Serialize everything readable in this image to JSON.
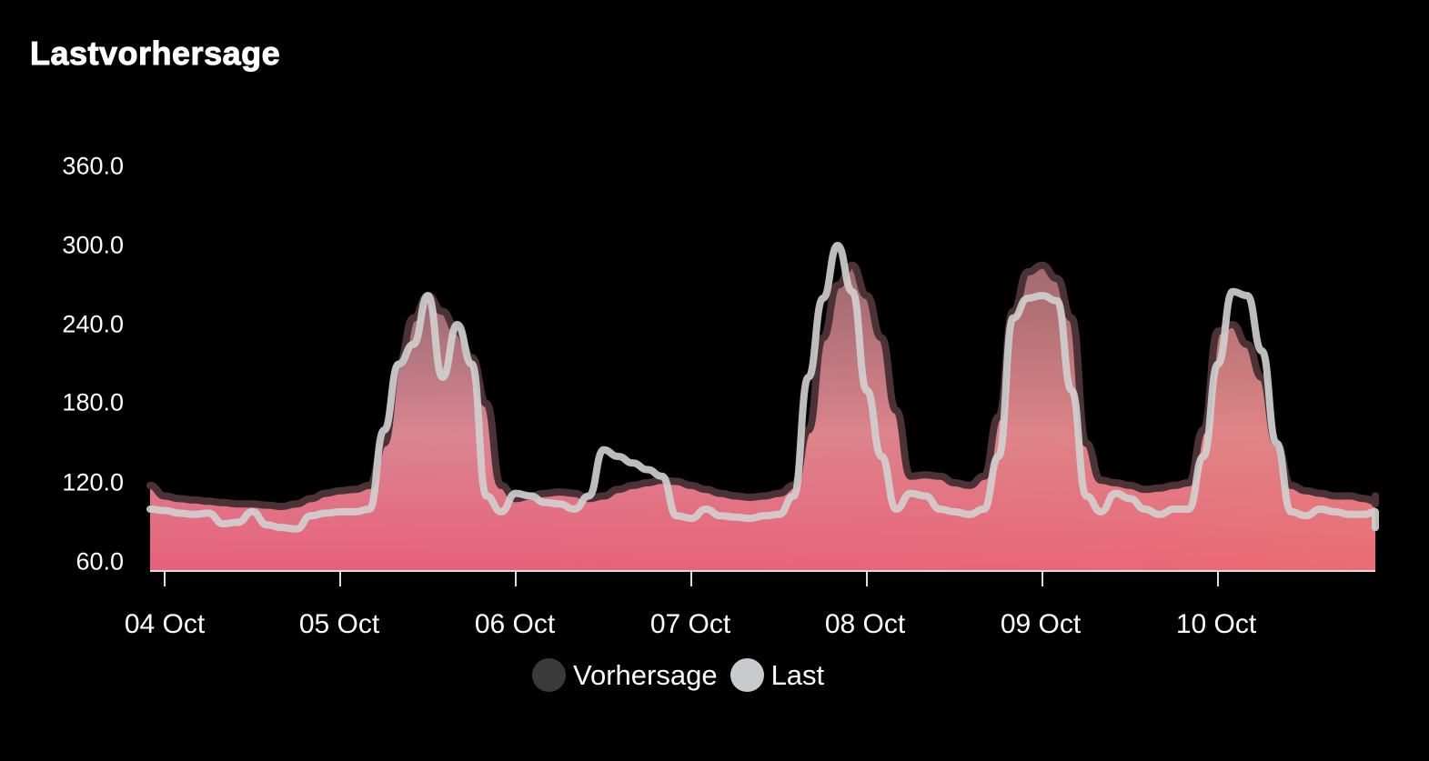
{
  "header": {
    "title": "Lastvorhersage"
  },
  "legend": {
    "items": [
      {
        "label": "Vorhersage",
        "color": "#3a3a3a"
      },
      {
        "label": "Last",
        "color": "#c8cacb"
      }
    ]
  },
  "colors": {
    "background": "#000000",
    "forecast_line": "#4a3236",
    "load_line": "#cfcfcf",
    "fill_top": "#b88890",
    "fill_bottom": "#e8607a",
    "axis": "#dddddd"
  },
  "chart_data": {
    "type": "area",
    "title": "Lastvorhersage",
    "xlabel": "",
    "ylabel": "",
    "ylim": [
      60,
      360
    ],
    "yticks": [
      "360.0",
      "300.0",
      "240.0",
      "180.0",
      "120.0",
      "60.0"
    ],
    "xticks": [
      "04 Oct",
      "05 Oct",
      "06 Oct",
      "07 Oct",
      "08 Oct",
      "09 Oct",
      "10 Oct"
    ],
    "x_unit": "hours since 04 Oct 00:00",
    "x_start": -2,
    "x_step": 2,
    "grid": false,
    "legend_position": "bottom",
    "series": [
      {
        "name": "Vorhersage",
        "values": [
          118,
          110,
          108,
          107,
          106,
          105,
          104,
          104,
          103,
          102,
          104,
          108,
          112,
          114,
          115,
          118,
          150,
          210,
          245,
          262,
          250,
          235,
          215,
          180,
          118,
          108,
          110,
          112,
          113,
          112,
          108,
          110,
          115,
          118,
          120,
          122,
          121,
          118,
          115,
          112,
          110,
          109,
          110,
          112,
          118,
          160,
          230,
          270,
          285,
          262,
          230,
          175,
          125,
          126,
          125,
          120,
          118,
          125,
          170,
          250,
          280,
          285,
          275,
          245,
          150,
          122,
          120,
          118,
          115,
          116,
          118,
          120,
          160,
          235,
          240,
          225,
          200,
          150,
          118,
          114,
          112,
          110,
          110,
          108,
          106,
          105,
          104,
          104,
          105,
          110,
          110
        ]
      },
      {
        "name": "Last",
        "values": [
          100,
          99,
          97,
          96,
          97,
          89,
          90,
          98,
          88,
          86,
          85,
          95,
          97,
          98,
          98,
          100,
          160,
          210,
          225,
          262,
          200,
          240,
          210,
          110,
          98,
          112,
          110,
          105,
          104,
          100,
          110,
          145,
          140,
          135,
          130,
          125,
          95,
          93,
          100,
          95,
          94,
          93,
          95,
          96,
          110,
          200,
          260,
          300,
          265,
          190,
          140,
          100,
          112,
          110,
          100,
          98,
          96,
          100,
          140,
          245,
          260,
          262,
          258,
          190,
          110,
          98,
          112,
          108,
          100,
          96,
          100,
          100,
          140,
          210,
          265,
          262,
          220,
          150,
          98,
          95,
          100,
          98,
          96,
          96,
          98,
          93,
          86,
          90,
          88,
          96,
          97
        ]
      }
    ]
  }
}
